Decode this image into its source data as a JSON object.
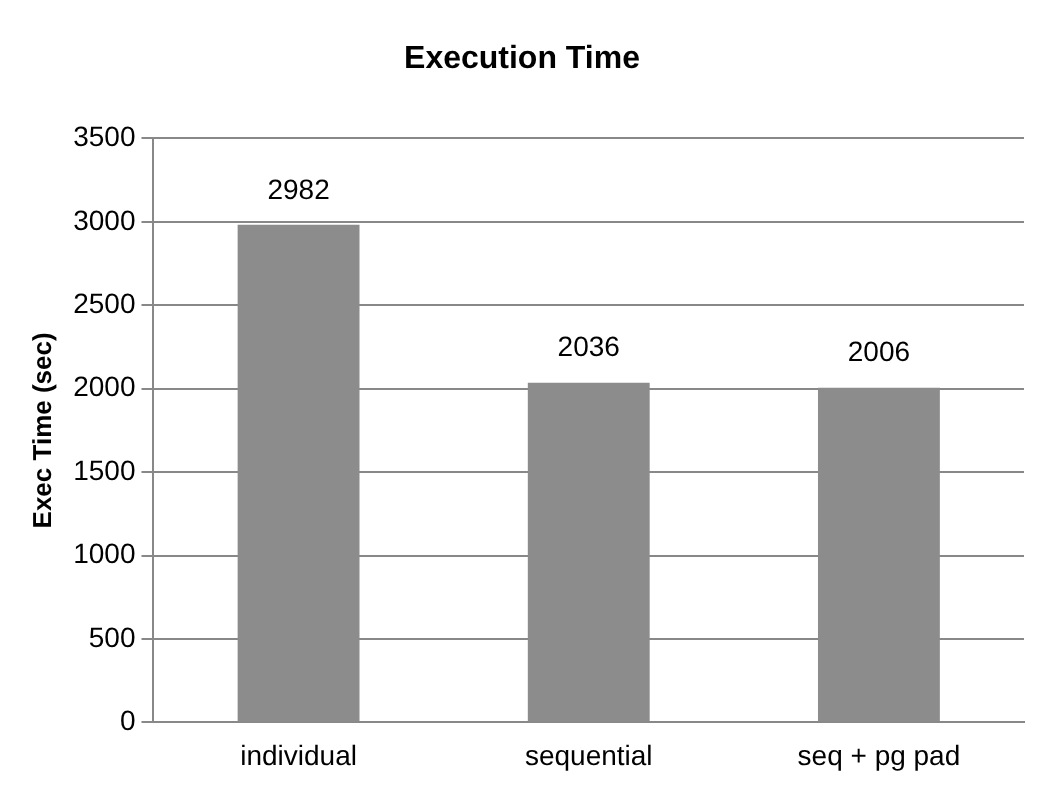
{
  "chart_data": {
    "type": "bar",
    "title": "Execution Time",
    "ylabel": "Exec Time (sec)",
    "categories": [
      "individual",
      "sequential",
      "seq + pg pad"
    ],
    "values": [
      2982,
      2036,
      2006
    ],
    "color": "#8c8c8c",
    "ylim": [
      0,
      3500
    ],
    "yticks": [
      0,
      500,
      1000,
      1500,
      2000,
      2500,
      3000,
      3500
    ],
    "grid": "y",
    "data_labels": true
  }
}
